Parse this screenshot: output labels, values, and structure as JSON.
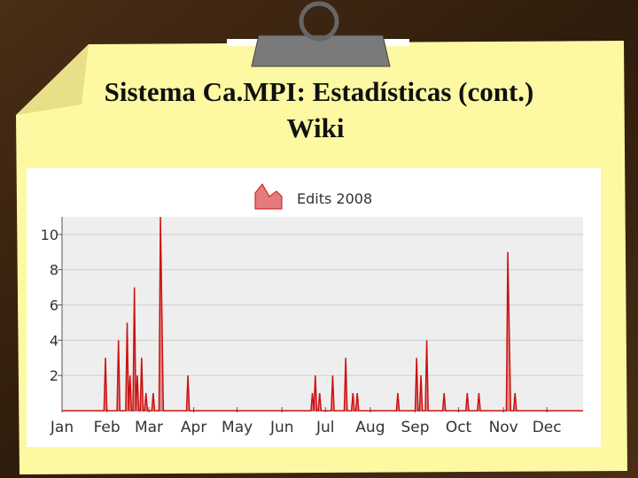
{
  "slide_title": [
    "Sistema Ca.MPI: Estadísticas (cont.)",
    "Wiki"
  ],
  "chart_data": {
    "type": "area",
    "x": [
      0,
      29,
      30,
      31,
      38,
      39,
      40,
      44,
      45,
      46,
      47,
      48,
      49,
      50,
      51,
      52,
      53,
      54,
      55,
      56,
      57,
      58,
      59,
      62,
      63,
      64,
      67,
      68,
      69,
      70,
      86,
      87,
      88,
      172,
      173,
      174,
      175,
      176,
      177,
      178,
      179,
      186,
      187,
      188,
      195,
      196,
      197,
      200,
      201,
      202,
      203,
      204,
      205,
      231,
      232,
      233,
      244,
      245,
      246,
      247,
      248,
      249,
      251,
      252,
      253,
      263,
      264,
      265,
      279,
      280,
      281,
      287,
      288,
      289,
      307,
      308,
      309,
      310,
      312,
      313,
      314,
      360
    ],
    "series": [
      {
        "name": "Edits 2008",
        "color": "#cc1111",
        "values": [
          0,
          0,
          3,
          0,
          0,
          4,
          0,
          0,
          5,
          0,
          2,
          0,
          0,
          7,
          0,
          2,
          0,
          0,
          3,
          0,
          0,
          1,
          0,
          0,
          1,
          0,
          0,
          11,
          5.5,
          0,
          0,
          2,
          0,
          0,
          1,
          0,
          2,
          0,
          0,
          1,
          0,
          0,
          2,
          0,
          0,
          3,
          0,
          0,
          1,
          0,
          0,
          1,
          0,
          0,
          1,
          0,
          0,
          3,
          0,
          0,
          2,
          0,
          0,
          4,
          0,
          0,
          1,
          0,
          0,
          1,
          0,
          0,
          1,
          0,
          0,
          9,
          4.5,
          0,
          0,
          1,
          0,
          0
        ]
      }
    ],
    "xlim": [
      0,
      360
    ],
    "xticks": [
      {
        "value": 0,
        "label": "Jan"
      },
      {
        "value": 31,
        "label": "Feb"
      },
      {
        "value": 60,
        "label": "Mar"
      },
      {
        "value": 91,
        "label": "Apr"
      },
      {
        "value": 121,
        "label": "May"
      },
      {
        "value": 152,
        "label": "Jun"
      },
      {
        "value": 182,
        "label": "Jul"
      },
      {
        "value": 213,
        "label": "Aug"
      },
      {
        "value": 244,
        "label": "Sep"
      },
      {
        "value": 274,
        "label": "Oct"
      },
      {
        "value": 305,
        "label": "Nov"
      },
      {
        "value": 335,
        "label": "Dec"
      }
    ],
    "ylim": [
      0,
      11
    ],
    "yticks": [
      2,
      4,
      6,
      8,
      10
    ],
    "grid": true
  }
}
